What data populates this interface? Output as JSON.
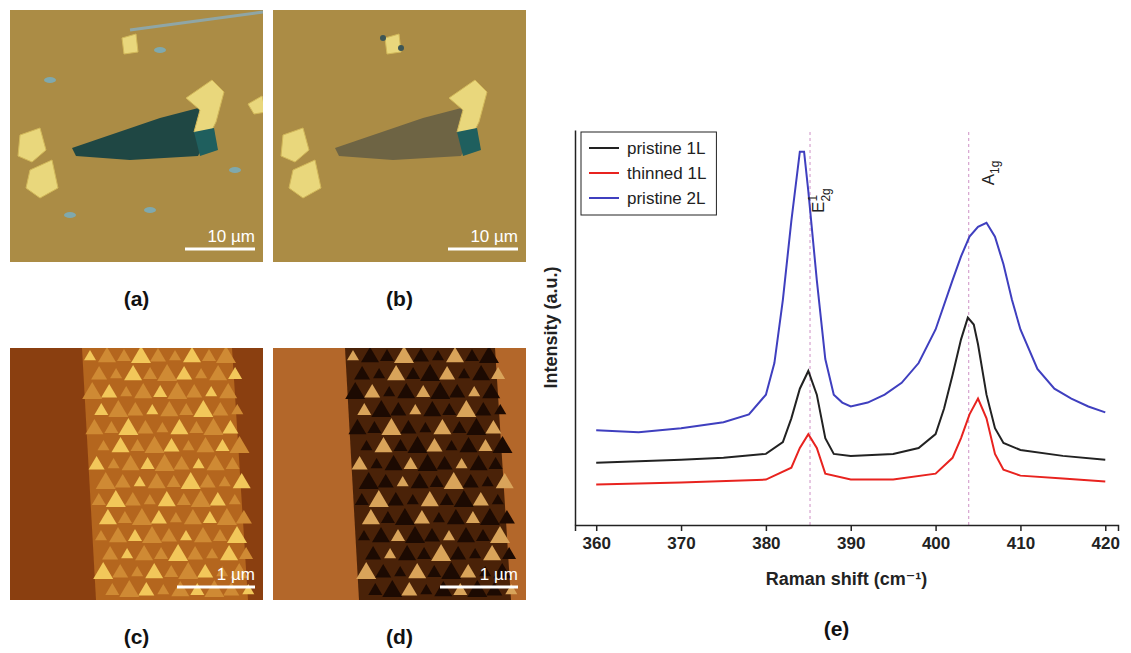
{
  "panels": [
    {
      "panel_label": "(a)",
      "scale_bar": "10 µm"
    },
    {
      "panel_label": "(b)",
      "scale_bar": "10 µm"
    },
    {
      "panel_label": "(c)",
      "scale_bar": "1 µm"
    },
    {
      "panel_label": "(d)",
      "scale_bar": "1 µm"
    }
  ],
  "chart_data": {
    "type": "line",
    "panel_label": "(e)",
    "x_label": "Raman shift (cm⁻¹)",
    "y_label": "Intensity (a.u.)",
    "xlim": [
      357.5,
      421.5
    ],
    "xticks": [
      360,
      370,
      380,
      390,
      400,
      410,
      420
    ],
    "ylim": [
      0,
      100
    ],
    "yticks": [],
    "tick_labels": "x",
    "legend": "upper left",
    "ref_lines": [
      385.2,
      403.9
    ],
    "annotations": [
      {
        "text": "E",
        "sup": "1",
        "sub": "2g",
        "x": 386.9,
        "y": 79
      },
      {
        "text": "A",
        "sub": "1g",
        "x": 406.9,
        "y": 86
      }
    ],
    "series": [
      {
        "name": "pristine 1L",
        "color": "#222222",
        "x": [
          360,
          370,
          375,
          380,
          382,
          383,
          384,
          385,
          386,
          387,
          388,
          390,
          395,
          398,
          400,
          401,
          402,
          403,
          403.8,
          404.5,
          405,
          406,
          407,
          408,
          410,
          415,
          420
        ],
        "values": [
          15.75,
          16.5,
          17,
          18,
          21,
          27,
          34.5,
          39,
          33,
          22,
          18,
          17.5,
          18,
          19.5,
          23,
          29.5,
          38,
          47,
          52.5,
          50.75,
          45.75,
          33,
          24.5,
          20.75,
          19,
          17.5,
          16.5
        ]
      },
      {
        "name": "thinned 1L",
        "color": "#e8231f",
        "x": [
          360,
          370,
          380,
          383,
          384,
          385,
          386,
          387,
          390,
          395,
          400,
          402,
          403,
          404,
          405,
          406,
          407,
          408,
          410,
          415,
          420
        ],
        "values": [
          10.25,
          10.75,
          11.5,
          14.5,
          19.5,
          23,
          19.5,
          13,
          11.5,
          11.5,
          13,
          17,
          22,
          28,
          32,
          27,
          18,
          14,
          12.5,
          11.75,
          11
        ]
      },
      {
        "name": "pristine 2L",
        "color": "#3f3fbf",
        "x": [
          360,
          365,
          370,
          375,
          378,
          380,
          381,
          382,
          383,
          384,
          384.5,
          385,
          386,
          387,
          388,
          389,
          390,
          392,
          394,
          396,
          398,
          400,
          402,
          403,
          404,
          405,
          406,
          407,
          408,
          409,
          410,
          412,
          414,
          416,
          418,
          420
        ],
        "values": [
          24,
          23.5,
          24.5,
          26,
          28,
          33,
          41,
          57,
          77,
          94.5,
          94.5,
          84.5,
          62,
          42,
          33,
          31,
          30,
          31,
          33,
          36,
          41,
          49.5,
          62,
          68,
          73,
          75.5,
          76.5,
          73,
          66,
          57,
          49.5,
          39.5,
          34.5,
          32,
          30,
          28.5
        ]
      }
    ]
  }
}
